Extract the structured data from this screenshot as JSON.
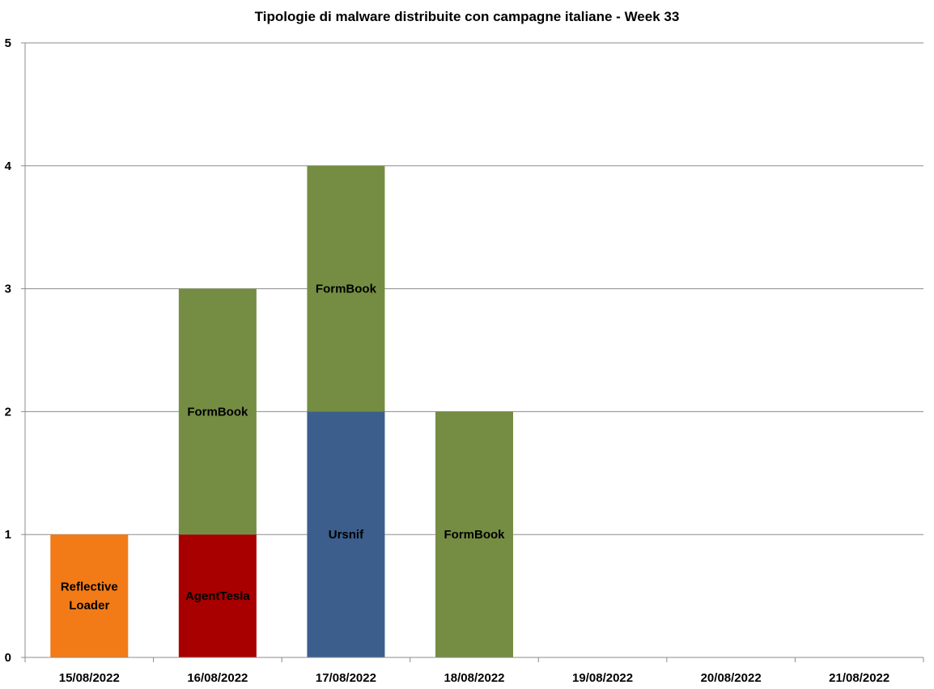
{
  "chart_data": {
    "type": "bar",
    "stacked": true,
    "title": "Tipologie  di malware distribuite con campagne italiane - Week 33",
    "xlabel": "",
    "ylabel": "",
    "ylim": [
      0,
      5
    ],
    "yticks": [
      "0",
      "1",
      "2",
      "3",
      "4",
      "5"
    ],
    "grid": true,
    "legend": "none",
    "categories": [
      "15/08/2022",
      "16/08/2022",
      "17/08/2022",
      "18/08/2022",
      "19/08/2022",
      "20/08/2022",
      "21/08/2022"
    ],
    "series": [
      {
        "name": "Reflective Loader",
        "label_lines": [
          "Reflective",
          "Loader"
        ],
        "color": "#f27b18",
        "values": [
          1,
          0,
          0,
          0,
          0,
          0,
          0
        ]
      },
      {
        "name": "AgentTesla",
        "label_lines": [
          "AgentTesla"
        ],
        "color": "#a80000",
        "values": [
          0,
          1,
          0,
          0,
          0,
          0,
          0
        ]
      },
      {
        "name": "Ursnif",
        "label_lines": [
          "Ursnif"
        ],
        "color": "#3b5e8c",
        "values": [
          0,
          0,
          2,
          0,
          0,
          0,
          0
        ]
      },
      {
        "name": "FormBook",
        "label_lines": [
          "FormBook"
        ],
        "color": "#758d43",
        "values": [
          0,
          2,
          2,
          2,
          0,
          0,
          0
        ]
      }
    ]
  }
}
